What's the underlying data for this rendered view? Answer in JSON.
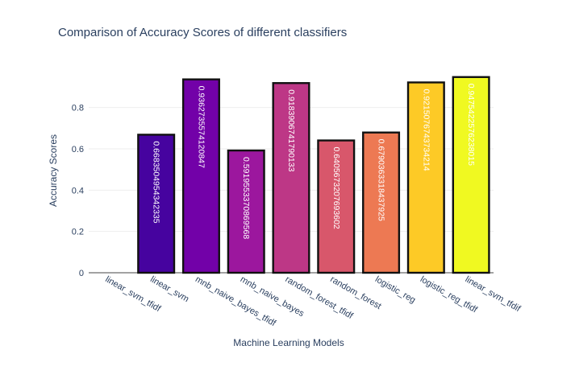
{
  "chart_data": {
    "type": "bar",
    "title": "Comparison of Accuracy Scores of different classifiers",
    "xlabel": "Machine Learning Models",
    "ylabel": "Accuracy Scores",
    "ylim": [
      0,
      0.97
    ],
    "yticks": [
      0,
      0.2,
      0.4,
      0.6,
      0.8
    ],
    "ytick_labels": [
      "0",
      "0.2",
      "0.4",
      "0.6",
      "0.8"
    ],
    "grid": true,
    "categories": [
      "linear_svm_tfidf",
      "linear_svm",
      "mnb_naive_bayes_tfidf",
      "mnb_naive_bayes",
      "random_forest_tfidf",
      "random_forest",
      "logistic_reg",
      "logistic_reg_tfidf",
      "linear_svm_tfdif"
    ],
    "values": [
      0,
      0.6683504954342335,
      0.9362735574120847,
      0.5919553370869568,
      0.9183906741790133,
      0.6405673207693602,
      0.6790363318437925,
      0.9215076743734214,
      0.9475422576238015
    ],
    "value_labels": [
      "",
      "0.6683504954342335",
      "0.9362735574120847",
      "0.5919553370869568",
      "0.9183906741790133",
      "0.6405673207693602",
      "0.6790363318437925",
      "0.9215076743734214",
      "0.9475422576238015"
    ],
    "colors": [
      "#0d0887",
      "#46039f",
      "#7201a8",
      "#9c179e",
      "#bd3786",
      "#d8576b",
      "#ed7953",
      "#fb9f3a",
      "#fdca26",
      "#f0f921"
    ],
    "bar_colors": [
      "#0d0887",
      "#46039f",
      "#7201a8",
      "#9c179e",
      "#bd3786",
      "#d8576b",
      "#ed7953",
      "#fdca26",
      "#f0f921"
    ]
  }
}
